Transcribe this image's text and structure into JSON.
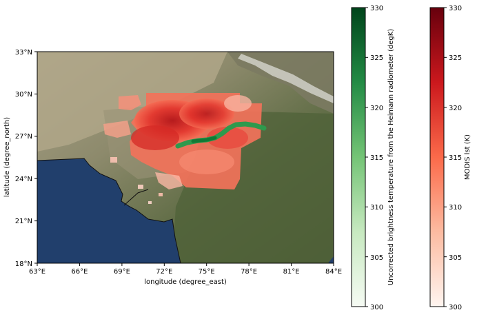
{
  "map": {
    "x_ticks": [
      "63°E",
      "66°E",
      "69°E",
      "72°E",
      "75°E",
      "78°E",
      "81°E",
      "84°E"
    ],
    "y_ticks": [
      "33°N",
      "30°N",
      "27°N",
      "24°N",
      "21°N",
      "18°N"
    ],
    "xlabel": "longitude (degree_east)",
    "ylabel": "latitude (degree_north)",
    "lon_range": [
      63,
      84
    ],
    "lat_range": [
      18,
      33
    ]
  },
  "colorbar_green": {
    "label": "Uncorrected brightness temperature from the Heimann radiometer (degK)",
    "ticks": [
      "330",
      "325",
      "320",
      "315",
      "310",
      "305",
      "300"
    ],
    "range": [
      300,
      330
    ],
    "color_low": "#f6fbf4",
    "color_high": "#00441b"
  },
  "colorbar_red": {
    "label": "MODIS lst (K)",
    "ticks": [
      "330",
      "325",
      "320",
      "315",
      "310",
      "305",
      "300"
    ],
    "range": [
      300,
      330
    ],
    "color_low": "#fff5f0",
    "color_high": "#67000d"
  },
  "colors": {
    "ocean": "#1f3f6e",
    "land": "#5e6a44",
    "desert": "#a39a7c",
    "mountain_snow": "#e6e6e6"
  }
}
